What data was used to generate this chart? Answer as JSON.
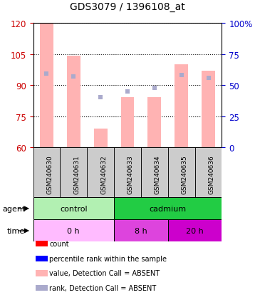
{
  "title": "GDS3079 / 1396108_at",
  "samples": [
    "GSM240630",
    "GSM240631",
    "GSM240632",
    "GSM240633",
    "GSM240634",
    "GSM240635",
    "GSM240636"
  ],
  "bar_values": [
    120,
    104,
    69,
    84,
    84,
    100,
    97
  ],
  "rank_values": [
    59,
    57,
    40,
    45,
    48,
    58,
    56
  ],
  "ylim_left": [
    60,
    120
  ],
  "ylim_right": [
    0,
    100
  ],
  "yticks_left": [
    60,
    75,
    90,
    105,
    120
  ],
  "yticks_right": [
    0,
    25,
    50,
    75,
    100
  ],
  "bar_color": "#ffb3b3",
  "rank_color": "#aaaacc",
  "agent_control_color": "#b2f0b2",
  "agent_cadmium_color": "#22cc44",
  "time_0h_color": "#ffbbff",
  "time_8h_color": "#dd44dd",
  "time_20h_color": "#cc00cc",
  "legend_items": [
    {
      "color": "#ff0000",
      "label": "count"
    },
    {
      "color": "#0000ff",
      "label": "percentile rank within the sample"
    },
    {
      "color": "#ffb3b3",
      "label": "value, Detection Call = ABSENT"
    },
    {
      "color": "#aaaacc",
      "label": "rank, Detection Call = ABSENT"
    }
  ],
  "left_axis_color": "#cc0000",
  "right_axis_color": "#0000cc",
  "n_samples": 7,
  "control_span": [
    0,
    3
  ],
  "cadmium_span": [
    3,
    7
  ],
  "time_0h_span": [
    0,
    3
  ],
  "time_8h_span": [
    3,
    5
  ],
  "time_20h_span": [
    5,
    7
  ],
  "sample_box_color": "#cccccc",
  "bar_width": 0.5
}
